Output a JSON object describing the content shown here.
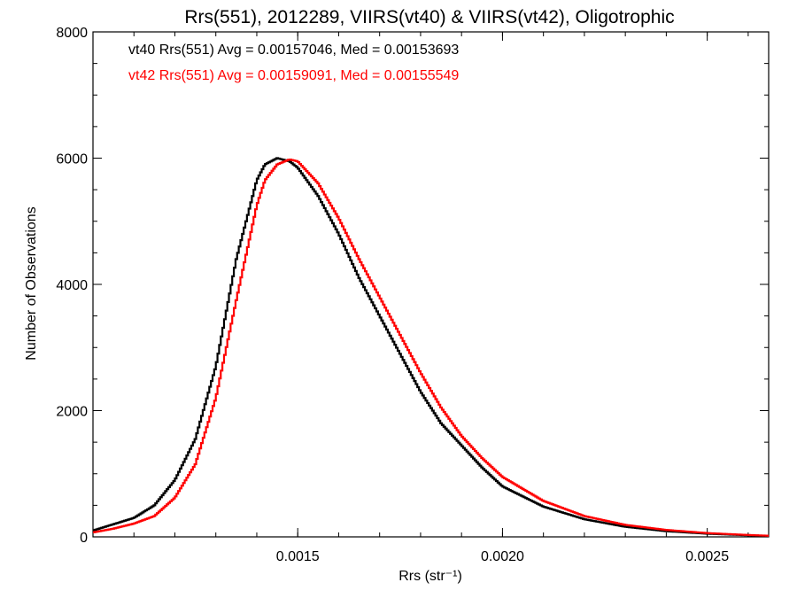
{
  "chart_data": {
    "type": "line",
    "title": "Rrs(551), 2012289, VIIRS(vt40) & VIIRS(vt42), Oligotrophic",
    "xlabel": "Rrs (str⁻¹)",
    "ylabel": "Number of Observations",
    "xlim": [
      0.001,
      0.00265
    ],
    "ylim": [
      0,
      8000
    ],
    "x_ticks": [
      0.0015,
      0.002,
      0.0025
    ],
    "x_tick_labels": [
      "0.0015",
      "0.0020",
      "0.0025"
    ],
    "y_ticks": [
      0,
      2000,
      4000,
      6000,
      8000
    ],
    "y_tick_labels": [
      "0",
      "2000",
      "4000",
      "6000",
      "8000"
    ],
    "grid": false,
    "legend_position": "top-left",
    "annotations": [
      {
        "text": "vt40 Rrs(551) Avg = 0.00157046, Med = 0.00153693",
        "color": "#000000"
      },
      {
        "text": "vt42 Rrs(551) Avg = 0.00159091, Med = 0.00155549",
        "color": "#ff0000"
      }
    ],
    "x": [
      0.001,
      0.00105,
      0.0011,
      0.00115,
      0.0012,
      0.00125,
      0.0013,
      0.00135,
      0.0014,
      0.00142,
      0.00145,
      0.00148,
      0.0015,
      0.00155,
      0.0016,
      0.00165,
      0.0017,
      0.00175,
      0.0018,
      0.00185,
      0.0019,
      0.00195,
      0.002,
      0.0021,
      0.0022,
      0.0023,
      0.0024,
      0.0025,
      0.0026,
      0.00265
    ],
    "series": [
      {
        "name": "vt40",
        "color": "#000000",
        "values": [
          100,
          200,
          300,
          500,
          900,
          1550,
          2700,
          4400,
          5650,
          5900,
          6000,
          5950,
          5850,
          5400,
          4800,
          4100,
          3500,
          2900,
          2300,
          1800,
          1450,
          1100,
          800,
          480,
          280,
          160,
          90,
          50,
          25,
          15
        ]
      },
      {
        "name": "vt42",
        "color": "#ff0000",
        "values": [
          70,
          130,
          210,
          330,
          620,
          1150,
          2200,
          3750,
          5250,
          5650,
          5900,
          5980,
          5950,
          5600,
          5050,
          4400,
          3800,
          3200,
          2600,
          2050,
          1600,
          1250,
          950,
          570,
          330,
          190,
          110,
          60,
          30,
          18
        ]
      }
    ]
  }
}
